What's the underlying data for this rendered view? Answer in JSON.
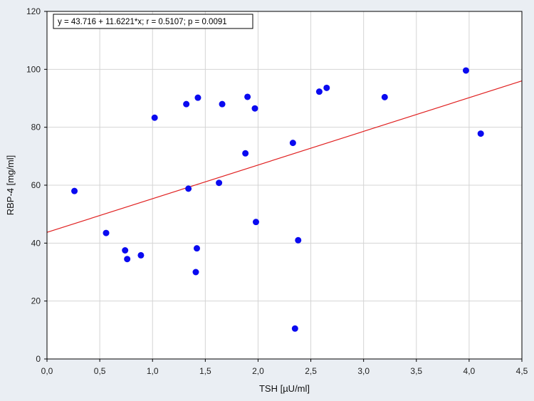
{
  "chart_data": {
    "type": "scatter",
    "title": "",
    "xlabel": "TSH [µU/ml]",
    "ylabel": "RBP-4 [mg/ml]",
    "xlim": [
      0,
      4.5
    ],
    "ylim": [
      0,
      120
    ],
    "x_ticks": [
      0,
      0.5,
      1.0,
      1.5,
      2.0,
      2.5,
      3.0,
      3.5,
      4.0,
      4.5
    ],
    "x_tick_labels": [
      "0,0",
      "0,5",
      "1,0",
      "1,5",
      "2,0",
      "2,5",
      "3,0",
      "3,5",
      "4,0",
      "4,5"
    ],
    "y_ticks": [
      0,
      20,
      40,
      60,
      80,
      100,
      120
    ],
    "y_tick_labels": [
      "0",
      "20",
      "40",
      "60",
      "80",
      "100",
      "120"
    ],
    "grid": true,
    "annotation": "y = 43.716 + 11.6221*x; r = 0.5107; p = 0.0091",
    "fit": {
      "intercept": 43.716,
      "slope": 11.6221,
      "color": "#e02020"
    },
    "point_color": "#0a0af0",
    "points": [
      {
        "x": 0.26,
        "y": 58.0
      },
      {
        "x": 0.56,
        "y": 43.5
      },
      {
        "x": 0.74,
        "y": 37.5
      },
      {
        "x": 0.76,
        "y": 34.5
      },
      {
        "x": 0.89,
        "y": 35.8
      },
      {
        "x": 1.02,
        "y": 83.3
      },
      {
        "x": 1.32,
        "y": 88.0
      },
      {
        "x": 1.34,
        "y": 58.8
      },
      {
        "x": 1.41,
        "y": 30.0
      },
      {
        "x": 1.42,
        "y": 38.2
      },
      {
        "x": 1.43,
        "y": 90.2
      },
      {
        "x": 1.63,
        "y": 60.8
      },
      {
        "x": 1.66,
        "y": 88.0
      },
      {
        "x": 1.88,
        "y": 71.0
      },
      {
        "x": 1.9,
        "y": 90.5
      },
      {
        "x": 1.97,
        "y": 86.5
      },
      {
        "x": 1.98,
        "y": 47.3
      },
      {
        "x": 2.33,
        "y": 74.6
      },
      {
        "x": 2.35,
        "y": 10.5
      },
      {
        "x": 2.38,
        "y": 41.0
      },
      {
        "x": 2.58,
        "y": 92.3
      },
      {
        "x": 2.65,
        "y": 93.6
      },
      {
        "x": 3.2,
        "y": 90.4
      },
      {
        "x": 3.97,
        "y": 99.6
      },
      {
        "x": 4.11,
        "y": 77.8
      }
    ]
  }
}
